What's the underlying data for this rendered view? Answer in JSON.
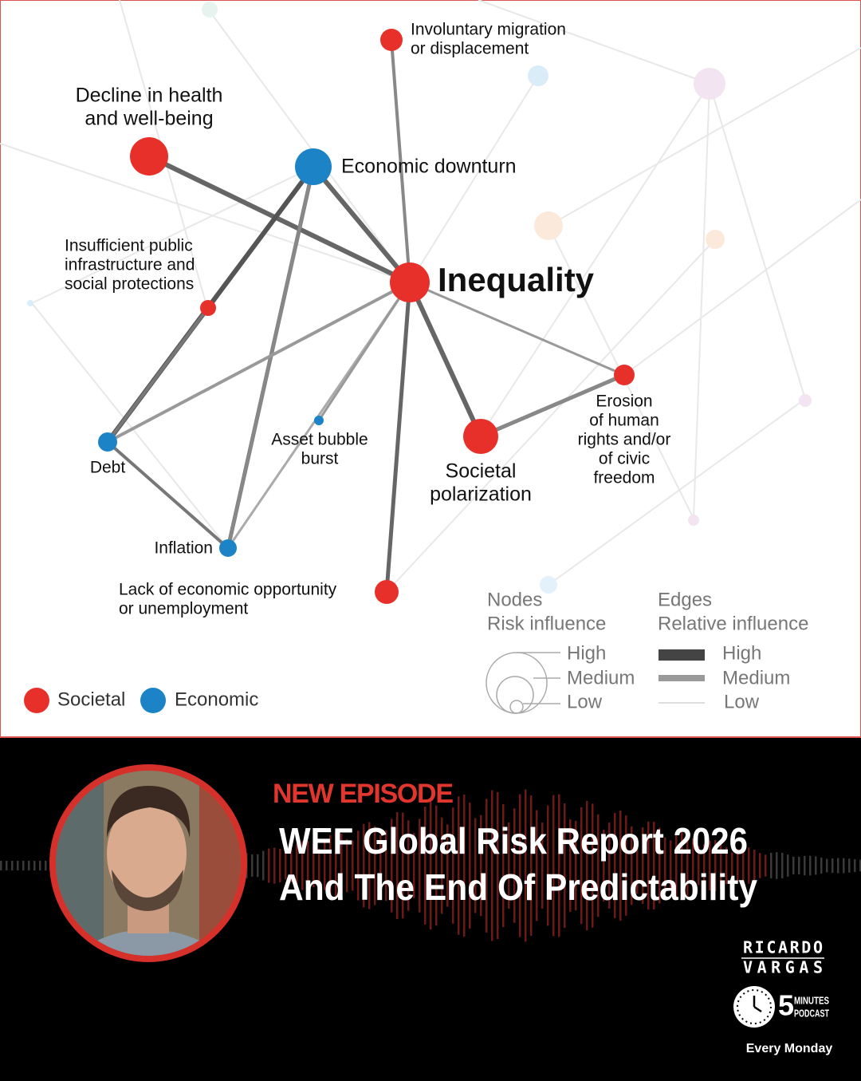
{
  "diagram": {
    "nodes": [
      {
        "label": [
          "Involuntary migration",
          "or displacement"
        ]
      },
      {
        "label": [
          "Decline in health",
          "and well-being"
        ]
      },
      {
        "label": [
          "Economic downturn"
        ]
      },
      {
        "label": [
          "Inequality"
        ]
      },
      {
        "label": [
          "Insufficient public",
          "infrastructure and",
          "social protections"
        ]
      },
      {
        "label": [
          "Debt"
        ]
      },
      {
        "label": [
          "Asset bubble",
          "burst"
        ]
      },
      {
        "label": [
          "Societal",
          "polarization"
        ]
      },
      {
        "label": [
          "Erosion",
          "of human",
          "rights and/or",
          "of civic",
          "freedom"
        ]
      },
      {
        "label": [
          "Inflation"
        ]
      },
      {
        "label": [
          "Lack of economic opportunity",
          "or unemployment"
        ]
      }
    ],
    "legend": {
      "categories": [
        "Societal",
        "Economic"
      ],
      "nodes": {
        "title": [
          "Nodes",
          "Risk influence"
        ],
        "levels": [
          "High",
          "Medium",
          "Low"
        ]
      },
      "edges": {
        "title": [
          "Edges",
          "Relative influence"
        ],
        "levels": [
          "High",
          "Medium",
          "Low"
        ]
      }
    }
  },
  "banner": {
    "kicker": "NEW EPISODE",
    "title": [
      "WEF Global Risk Report 2026",
      "And The End Of Predictability"
    ],
    "logo": {
      "name": [
        "RICARDO",
        "VARGAS"
      ],
      "badge": [
        "5",
        "MINUTES",
        "PODCAST"
      ],
      "schedule": "Every Monday"
    }
  }
}
